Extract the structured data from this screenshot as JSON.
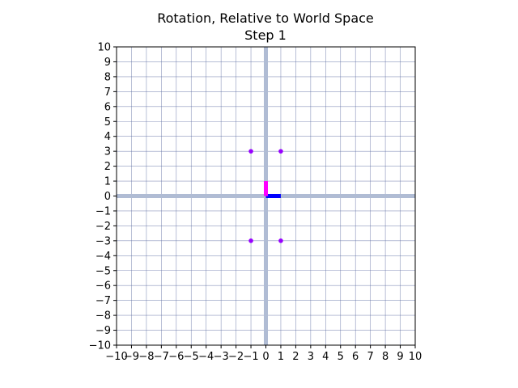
{
  "chart_data": {
    "type": "scatter",
    "title": "Rotation, Relative to World Space",
    "subtitle": "Step 1",
    "xlabel": "",
    "ylabel": "",
    "xlim": [
      -10,
      10
    ],
    "ylim": [
      -10,
      10
    ],
    "xticks": [
      "−10",
      "−9",
      "−8",
      "−7",
      "−6",
      "−5",
      "−4",
      "−3",
      "−2",
      "−1",
      "0",
      "1",
      "2",
      "3",
      "4",
      "5",
      "6",
      "7",
      "8",
      "9",
      "10"
    ],
    "yticks": [
      "10",
      "9",
      "8",
      "7",
      "6",
      "5",
      "4",
      "3",
      "2",
      "1",
      "0",
      "−1",
      "−2",
      "−3",
      "−4",
      "−5",
      "−6",
      "−7",
      "−8",
      "−9",
      "−10"
    ],
    "grid": true,
    "world_axes_color": "#b0bcd4",
    "grid_color": "#5a6aa0",
    "series": [
      {
        "points": [
          {
            "x": -1,
            "y": 3
          },
          {
            "x": 1,
            "y": 3
          },
          {
            "x": -1,
            "y": -3
          },
          {
            "x": 1,
            "y": -3
          }
        ],
        "color": "#9900ff"
      }
    ],
    "local_axes": [
      {
        "from": [
          0,
          0
        ],
        "to": [
          1,
          0
        ],
        "color": "#0000ff"
      },
      {
        "from": [
          0,
          0
        ],
        "to": [
          0,
          1
        ],
        "color": "#ff00ff"
      }
    ]
  }
}
